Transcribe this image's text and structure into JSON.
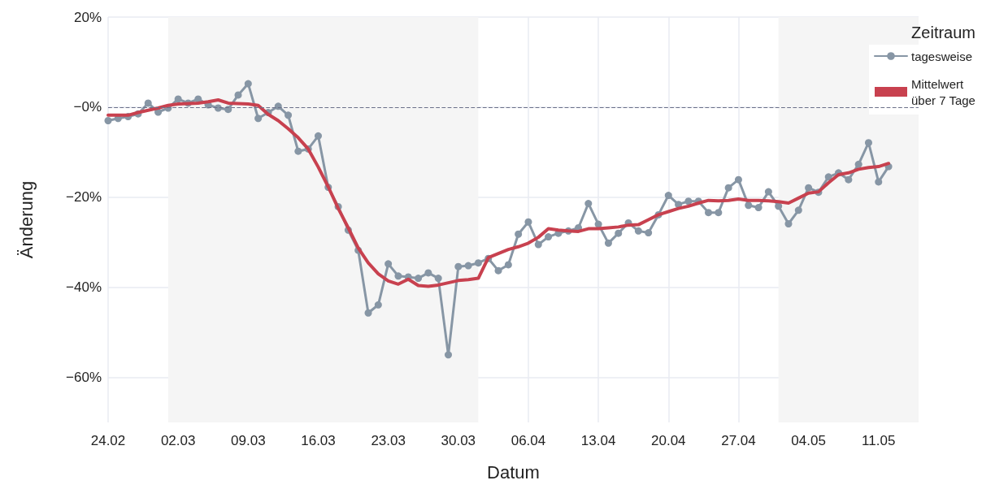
{
  "chart_data": {
    "type": "line",
    "xlabel": "Datum",
    "ylabel": "Änderung",
    "legend_title": "Zeitraum",
    "x": [
      "--02-24",
      "--02-25",
      "--02-26",
      "--02-27",
      "--02-28",
      "--02-29",
      "--03-01",
      "--03-02",
      "--03-03",
      "--03-04",
      "--03-05",
      "--03-06",
      "--03-07",
      "--03-08",
      "--03-09",
      "--03-10",
      "--03-11",
      "--03-12",
      "--03-13",
      "--03-14",
      "--03-15",
      "--03-16",
      "--03-17",
      "--03-18",
      "--03-19",
      "--03-20",
      "--03-21",
      "--03-22",
      "--03-23",
      "--03-24",
      "--03-25",
      "--03-26",
      "--03-27",
      "--03-28",
      "--03-29",
      "--03-30",
      "--03-31",
      "--04-01",
      "--04-02",
      "--04-03",
      "--04-04",
      "--04-05",
      "--04-06",
      "--04-07",
      "--04-08",
      "--04-09",
      "--04-10",
      "--04-11",
      "--04-12",
      "--04-13",
      "--04-14",
      "--04-15",
      "--04-16",
      "--04-17",
      "--04-18",
      "--04-19",
      "--04-20",
      "--04-21",
      "--04-22",
      "--04-23",
      "--04-24",
      "--04-25",
      "--04-26",
      "--04-27",
      "--04-28",
      "--04-29",
      "--04-30",
      "--05-01",
      "--05-02",
      "--05-03",
      "--05-04",
      "--05-05",
      "--05-06",
      "--05-07",
      "--05-08",
      "--05-09",
      "--05-10",
      "--05-11",
      "--05-12"
    ],
    "series": [
      {
        "name": "tagesweise",
        "color": "#8796a5",
        "marker": "circle",
        "values": [
          -3.0,
          -2.5,
          -2.1,
          -1.5,
          0.9,
          -1.1,
          -0.2,
          1.8,
          0.9,
          1.8,
          0.5,
          -0.2,
          -0.5,
          2.7,
          5.2,
          -2.5,
          -1.2,
          0.2,
          -1.8,
          -9.8,
          -9.3,
          -6.4,
          -17.8,
          -22.1,
          -27.3,
          -31.8,
          -45.7,
          -43.9,
          -34.8,
          -37.5,
          -37.7,
          -38.0,
          -36.8,
          -38.0,
          -55.0,
          -35.4,
          -35.2,
          -34.6,
          -33.6,
          -36.3,
          -35.0,
          -28.2,
          -25.5,
          -30.5,
          -28.8,
          -28.0,
          -27.5,
          -26.8,
          -21.4,
          -26.0,
          -30.2,
          -28.0,
          -25.7,
          -27.5,
          -27.9,
          -23.9,
          -19.6,
          -21.6,
          -20.9,
          -20.9,
          -23.4,
          -23.4,
          -17.9,
          -16.1,
          -21.8,
          -22.3,
          -18.8,
          -22.0,
          -25.9,
          -22.9,
          -17.9,
          -18.9,
          -15.5,
          -14.6,
          -16.1,
          -12.7,
          -7.9,
          -16.6,
          -13.2
        ]
      },
      {
        "name": "Mittelwert über 7 Tage",
        "color": "#c8414f",
        "marker": "none",
        "values": [
          -1.8,
          -1.8,
          -1.8,
          -1.2,
          -0.7,
          -0.2,
          0.4,
          0.7,
          0.8,
          0.9,
          1.2,
          1.6,
          0.9,
          0.8,
          0.7,
          0.4,
          -1.6,
          -3.0,
          -4.8,
          -6.8,
          -9.3,
          -13.3,
          -17.7,
          -22.5,
          -26.8,
          -31.3,
          -34.6,
          -37.0,
          -38.6,
          -39.3,
          -38.2,
          -39.6,
          -39.8,
          -39.5,
          -39.0,
          -38.5,
          -38.3,
          -38.0,
          -33.4,
          -32.5,
          -31.6,
          -31.0,
          -30.2,
          -28.9,
          -27.0,
          -27.3,
          -27.5,
          -27.6,
          -27.0,
          -27.0,
          -26.8,
          -26.6,
          -26.2,
          -26.1,
          -25.0,
          -23.9,
          -23.2,
          -22.5,
          -22.0,
          -21.3,
          -20.7,
          -20.8,
          -20.7,
          -20.4,
          -20.7,
          -20.7,
          -20.8,
          -21.0,
          -21.3,
          -20.2,
          -19.1,
          -18.8,
          -16.8,
          -15.0,
          -14.6,
          -13.8,
          -13.4,
          -13.2,
          -12.5
        ]
      }
    ],
    "xlim": [
      "--02-24",
      "--05-15"
    ],
    "xticks": [
      {
        "value": "--02-24",
        "label": "24.02"
      },
      {
        "value": "--03-02",
        "label": "02.03"
      },
      {
        "value": "--03-09",
        "label": "09.03"
      },
      {
        "value": "--03-16",
        "label": "16.03"
      },
      {
        "value": "--03-23",
        "label": "23.03"
      },
      {
        "value": "--03-30",
        "label": "30.03"
      },
      {
        "value": "--04-06",
        "label": "06.04"
      },
      {
        "value": "--04-13",
        "label": "13.04"
      },
      {
        "value": "--04-20",
        "label": "20.04"
      },
      {
        "value": "--04-27",
        "label": "27.04"
      },
      {
        "value": "--05-04",
        "label": "04.05"
      },
      {
        "value": "--05-11",
        "label": "11.05"
      }
    ],
    "ylim": [
      -70,
      20
    ],
    "yticks": [
      {
        "value": -60,
        "label": "−60%"
      },
      {
        "value": -40,
        "label": "−40%"
      },
      {
        "value": -20,
        "label": "−20%"
      },
      {
        "value": 0,
        "label": "−0%"
      },
      {
        "value": 20,
        "label": "20%"
      }
    ],
    "grid": true,
    "legend": "top right",
    "line_style": "solid",
    "ref_lines": [
      {
        "axis": "y",
        "value": 0,
        "color": "#6b7089",
        "line_style": "dashed"
      }
    ],
    "bands": [
      {
        "axis": "x",
        "from": "--03-01",
        "to": "--04-01",
        "color": "#f5f5f5"
      },
      {
        "axis": "x",
        "from": "--05-01",
        "to": "--05-15",
        "color": "#f5f5f5"
      }
    ]
  }
}
